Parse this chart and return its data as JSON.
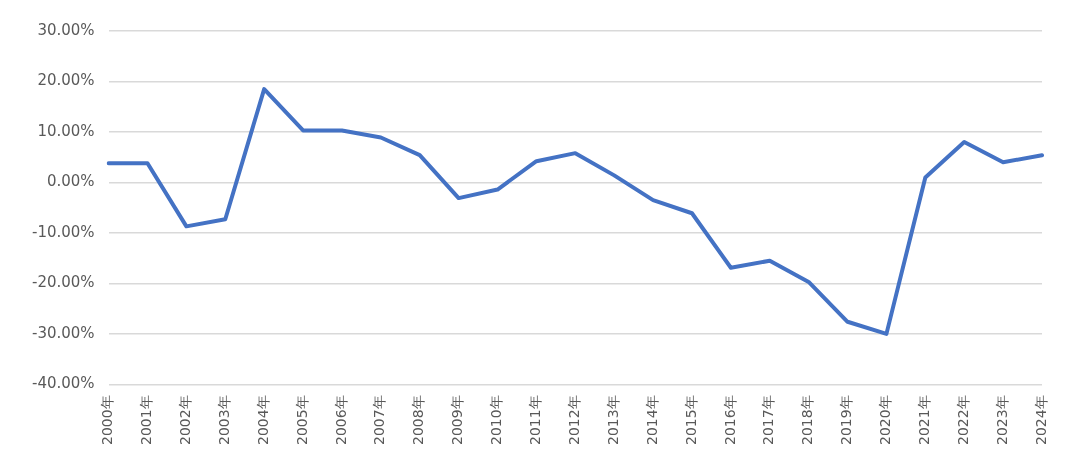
{
  "chart_data": {
    "type": "line",
    "categories": [
      "2000年",
      "2001年",
      "2002年",
      "2003年",
      "2004年",
      "2005年",
      "2006年",
      "2007年",
      "2008年",
      "2009年",
      "2010年",
      "2011年",
      "2012年",
      "2013年",
      "2014年",
      "2015年",
      "2016年",
      "2017年",
      "2018年",
      "2019年",
      "2020年",
      "2021年",
      "2022年",
      "2023年",
      "2024年"
    ],
    "series": [
      {
        "color": "#4472c4",
        "values": [
          3.8,
          3.8,
          -8.7,
          -7.3,
          18.5,
          10.3,
          10.3,
          8.9,
          5.4,
          -3.1,
          -1.4,
          4.2,
          5.8,
          1.4,
          -3.5,
          -6.1,
          -16.9,
          -15.5,
          -19.7,
          -27.6,
          -30.0,
          1.0,
          8.0,
          4.0,
          5.4
        ]
      }
    ],
    "ylim": [
      -40,
      30
    ],
    "yticks": [
      {
        "value": -40,
        "label": "-40.00%"
      },
      {
        "value": -30,
        "label": "-30.00%"
      },
      {
        "value": -20,
        "label": "-20.00%"
      },
      {
        "value": -10,
        "label": "-10.00%"
      },
      {
        "value": 0,
        "label": "0.00%"
      },
      {
        "value": 10,
        "label": "10.00%"
      },
      {
        "value": 20,
        "label": "20.00%"
      },
      {
        "value": 30,
        "label": "30.00%"
      }
    ],
    "grid": "y",
    "marker": "none",
    "line_style": "solid",
    "legend": false
  }
}
